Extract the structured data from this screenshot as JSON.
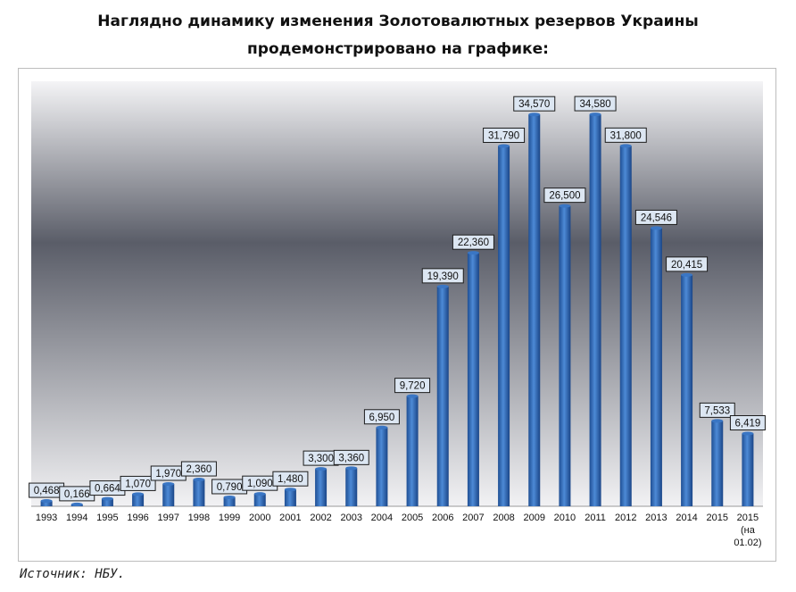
{
  "heading": "Наглядно динамику изменения Золотовалютных резервов Украины продемонстрировано на графике:",
  "source": "Источник: НБУ.",
  "colors": {
    "bar": "#3a76c4",
    "bar_dark": "#1f4f94",
    "label_bg": "#dce6f2",
    "label_border": "#1c1c1c"
  },
  "chart_data": {
    "type": "bar",
    "categories": [
      "1993",
      "1994",
      "1995",
      "1996",
      "1997",
      "1998",
      "1999",
      "2000",
      "2001",
      "2002",
      "2003",
      "2004",
      "2005",
      "2006",
      "2007",
      "2008",
      "2009",
      "2010",
      "2011",
      "2012",
      "2013",
      "2014",
      "2015",
      "2015 (на 01.02)"
    ],
    "category_lines": [
      [
        "1993"
      ],
      [
        "1994"
      ],
      [
        "1995"
      ],
      [
        "1996"
      ],
      [
        "1997"
      ],
      [
        "1998"
      ],
      [
        "1999"
      ],
      [
        "2000"
      ],
      [
        "2001"
      ],
      [
        "2002"
      ],
      [
        "2003"
      ],
      [
        "2004"
      ],
      [
        "2005"
      ],
      [
        "2006"
      ],
      [
        "2007"
      ],
      [
        "2008"
      ],
      [
        "2009"
      ],
      [
        "2010"
      ],
      [
        "2011"
      ],
      [
        "2012"
      ],
      [
        "2013"
      ],
      [
        "2014"
      ],
      [
        "2015"
      ],
      [
        "2015",
        "(на",
        "01.02)"
      ]
    ],
    "values": [
      0.468,
      0.166,
      0.664,
      1.07,
      1.97,
      2.36,
      0.79,
      1.09,
      1.48,
      3.3,
      3.36,
      6.95,
      9.72,
      19.39,
      22.36,
      31.79,
      34.57,
      26.5,
      34.58,
      31.8,
      24.546,
      20.415,
      7.533,
      6.419
    ],
    "data_labels": [
      "0,468",
      "0,166",
      "0,664",
      "1,070",
      "1,970",
      "2,360",
      "0,790",
      "1,090",
      "1,480",
      "3,300",
      "3,360",
      "6,950",
      "9,720",
      "19,390",
      "22,360",
      "31,790",
      "34,570",
      "26,500",
      "34,580",
      "31,800",
      "24,546",
      "20,415",
      "7,533",
      "6,419"
    ],
    "ylim": [
      0,
      37.5
    ],
    "title": "",
    "xlabel": "",
    "ylabel": "",
    "legend": "none"
  }
}
